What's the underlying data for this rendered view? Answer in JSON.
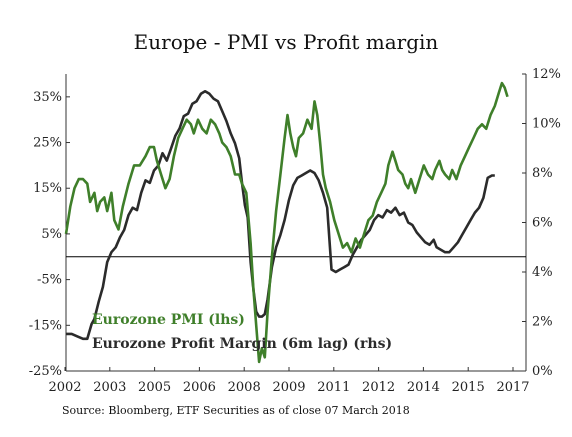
{
  "chart_data": {
    "type": "line",
    "title": "Europe - PMI vs Profit margin",
    "source": "Source: Bloomberg, ETF Securities as of close 07 March 2018",
    "grid": false,
    "legend_position": "bottom-left, inside plot",
    "x_ticks": [
      "2002",
      "2003",
      "2005",
      "2006",
      "2008",
      "2009",
      "2011",
      "2012",
      "2014",
      "2015",
      "2017"
    ],
    "x_range": [
      2002.0,
      2018.2
    ],
    "y_left": {
      "range": [
        -25,
        40
      ],
      "ticks": [
        35,
        25,
        15,
        5,
        -5,
        -15,
        -25
      ],
      "tick_labels": [
        "35%",
        "25%",
        "15%",
        "5%",
        "-5%",
        "-15%",
        "-25%"
      ]
    },
    "y_right": {
      "range": [
        0,
        12
      ],
      "ticks": [
        0,
        2,
        4,
        6,
        8,
        10,
        12
      ],
      "tick_labels": [
        "0%",
        "2%",
        "4%",
        "6%",
        "8%",
        "10%",
        "12%"
      ]
    },
    "zero_line": 0,
    "series": [
      {
        "name": "Eurozone PMI (lhs)",
        "axis": "left",
        "color": "#3f7f2a",
        "points": [
          [
            2002.0,
            5
          ],
          [
            2002.15,
            11
          ],
          [
            2002.3,
            15
          ],
          [
            2002.45,
            17
          ],
          [
            2002.6,
            17
          ],
          [
            2002.75,
            16
          ],
          [
            2002.85,
            12
          ],
          [
            2003.0,
            14
          ],
          [
            2003.1,
            10
          ],
          [
            2003.2,
            12
          ],
          [
            2003.35,
            13
          ],
          [
            2003.45,
            10
          ],
          [
            2003.6,
            14
          ],
          [
            2003.7,
            8
          ],
          [
            2003.85,
            6
          ],
          [
            2004.0,
            11
          ],
          [
            2004.2,
            16
          ],
          [
            2004.4,
            20
          ],
          [
            2004.6,
            20
          ],
          [
            2004.8,
            22
          ],
          [
            2004.95,
            24
          ],
          [
            2005.1,
            24
          ],
          [
            2005.2,
            21
          ],
          [
            2005.35,
            18
          ],
          [
            2005.5,
            15
          ],
          [
            2005.65,
            17
          ],
          [
            2005.8,
            22
          ],
          [
            2005.95,
            26
          ],
          [
            2006.1,
            28
          ],
          [
            2006.25,
            30
          ],
          [
            2006.4,
            29
          ],
          [
            2006.5,
            27
          ],
          [
            2006.65,
            30
          ],
          [
            2006.8,
            28
          ],
          [
            2006.95,
            27
          ],
          [
            2007.1,
            30
          ],
          [
            2007.25,
            29
          ],
          [
            2007.4,
            27
          ],
          [
            2007.5,
            25
          ],
          [
            2007.65,
            24
          ],
          [
            2007.8,
            22
          ],
          [
            2007.95,
            18
          ],
          [
            2008.1,
            18
          ],
          [
            2008.2,
            16
          ],
          [
            2008.35,
            14
          ],
          [
            2008.5,
            3
          ],
          [
            2008.6,
            -7
          ],
          [
            2008.7,
            -15
          ],
          [
            2008.8,
            -23
          ],
          [
            2008.9,
            -20
          ],
          [
            2009.0,
            -22
          ],
          [
            2009.1,
            -12
          ],
          [
            2009.25,
            0
          ],
          [
            2009.4,
            10
          ],
          [
            2009.55,
            18
          ],
          [
            2009.7,
            26
          ],
          [
            2009.8,
            31
          ],
          [
            2009.9,
            27
          ],
          [
            2010.0,
            24
          ],
          [
            2010.1,
            22
          ],
          [
            2010.2,
            26
          ],
          [
            2010.35,
            27
          ],
          [
            2010.5,
            30
          ],
          [
            2010.65,
            28
          ],
          [
            2010.75,
            34
          ],
          [
            2010.85,
            31
          ],
          [
            2010.95,
            25
          ],
          [
            2011.05,
            18
          ],
          [
            2011.15,
            15
          ],
          [
            2011.3,
            12
          ],
          [
            2011.45,
            8
          ],
          [
            2011.6,
            5
          ],
          [
            2011.75,
            2
          ],
          [
            2011.9,
            3
          ],
          [
            2012.05,
            1
          ],
          [
            2012.2,
            4
          ],
          [
            2012.35,
            2
          ],
          [
            2012.5,
            5
          ],
          [
            2012.65,
            8
          ],
          [
            2012.8,
            9
          ],
          [
            2012.95,
            12
          ],
          [
            2013.1,
            14
          ],
          [
            2013.25,
            16
          ],
          [
            2013.35,
            20
          ],
          [
            2013.5,
            23
          ],
          [
            2013.6,
            21
          ],
          [
            2013.7,
            19
          ],
          [
            2013.85,
            18
          ],
          [
            2013.95,
            16
          ],
          [
            2014.05,
            15
          ],
          [
            2014.15,
            17
          ],
          [
            2014.3,
            14
          ],
          [
            2014.45,
            17
          ],
          [
            2014.6,
            20
          ],
          [
            2014.75,
            18
          ],
          [
            2014.9,
            17
          ],
          [
            2015.0,
            19
          ],
          [
            2015.15,
            21
          ],
          [
            2015.25,
            19
          ],
          [
            2015.35,
            18
          ],
          [
            2015.5,
            17
          ],
          [
            2015.6,
            19
          ],
          [
            2015.75,
            17
          ],
          [
            2015.9,
            20
          ],
          [
            2016.05,
            22
          ],
          [
            2016.2,
            24
          ],
          [
            2016.35,
            26
          ],
          [
            2016.5,
            28
          ],
          [
            2016.65,
            29
          ],
          [
            2016.8,
            28
          ],
          [
            2016.95,
            31
          ],
          [
            2017.1,
            33
          ],
          [
            2017.25,
            36
          ],
          [
            2017.35,
            38
          ],
          [
            2017.45,
            37
          ],
          [
            2017.55,
            35
          ]
        ]
      },
      {
        "name": "Eurozone Profit Margin (6m lag) (rhs)",
        "axis": "right",
        "color": "#2b2b2b",
        "points": [
          [
            2002.0,
            1.5
          ],
          [
            2002.2,
            1.5
          ],
          [
            2002.4,
            1.4
          ],
          [
            2002.6,
            1.3
          ],
          [
            2002.75,
            1.3
          ],
          [
            2002.9,
            1.9
          ],
          [
            2003.0,
            2.1
          ],
          [
            2003.15,
            2.8
          ],
          [
            2003.3,
            3.4
          ],
          [
            2003.45,
            4.4
          ],
          [
            2003.6,
            4.8
          ],
          [
            2003.75,
            5.0
          ],
          [
            2003.9,
            5.4
          ],
          [
            2004.05,
            5.7
          ],
          [
            2004.2,
            6.3
          ],
          [
            2004.35,
            6.6
          ],
          [
            2004.5,
            6.5
          ],
          [
            2004.65,
            7.2
          ],
          [
            2004.8,
            7.7
          ],
          [
            2004.95,
            7.6
          ],
          [
            2005.1,
            8.1
          ],
          [
            2005.25,
            8.3
          ],
          [
            2005.4,
            8.8
          ],
          [
            2005.55,
            8.5
          ],
          [
            2005.7,
            9.0
          ],
          [
            2005.85,
            9.5
          ],
          [
            2006.0,
            9.8
          ],
          [
            2006.15,
            10.3
          ],
          [
            2006.3,
            10.4
          ],
          [
            2006.45,
            10.8
          ],
          [
            2006.6,
            10.9
          ],
          [
            2006.75,
            11.2
          ],
          [
            2006.9,
            11.3
          ],
          [
            2007.05,
            11.2
          ],
          [
            2007.2,
            11.0
          ],
          [
            2007.35,
            10.9
          ],
          [
            2007.5,
            10.5
          ],
          [
            2007.65,
            10.1
          ],
          [
            2007.8,
            9.6
          ],
          [
            2007.95,
            9.2
          ],
          [
            2008.1,
            8.6
          ],
          [
            2008.2,
            7.6
          ],
          [
            2008.3,
            6.7
          ],
          [
            2008.4,
            6.2
          ],
          [
            2008.5,
            4.4
          ],
          [
            2008.6,
            3.3
          ],
          [
            2008.7,
            2.4
          ],
          [
            2008.8,
            2.2
          ],
          [
            2008.9,
            2.2
          ],
          [
            2009.0,
            2.3
          ],
          [
            2009.1,
            2.9
          ],
          [
            2009.25,
            4.2
          ],
          [
            2009.4,
            5.0
          ],
          [
            2009.55,
            5.5
          ],
          [
            2009.7,
            6.1
          ],
          [
            2009.85,
            6.9
          ],
          [
            2010.0,
            7.5
          ],
          [
            2010.15,
            7.8
          ],
          [
            2010.3,
            7.9
          ],
          [
            2010.45,
            8.0
          ],
          [
            2010.6,
            8.1
          ],
          [
            2010.75,
            8.0
          ],
          [
            2010.9,
            7.7
          ],
          [
            2011.05,
            7.2
          ],
          [
            2011.2,
            6.6
          ],
          [
            2011.35,
            4.1
          ],
          [
            2011.5,
            4.0
          ],
          [
            2011.65,
            4.1
          ],
          [
            2011.8,
            4.2
          ],
          [
            2011.95,
            4.3
          ],
          [
            2012.1,
            4.7
          ],
          [
            2012.25,
            5.0
          ],
          [
            2012.4,
            5.3
          ],
          [
            2012.55,
            5.5
          ],
          [
            2012.7,
            5.7
          ],
          [
            2012.85,
            6.1
          ],
          [
            2013.0,
            6.3
          ],
          [
            2013.15,
            6.2
          ],
          [
            2013.3,
            6.5
          ],
          [
            2013.45,
            6.4
          ],
          [
            2013.6,
            6.6
          ],
          [
            2013.75,
            6.3
          ],
          [
            2013.9,
            6.4
          ],
          [
            2014.05,
            6.0
          ],
          [
            2014.2,
            5.9
          ],
          [
            2014.35,
            5.6
          ],
          [
            2014.5,
            5.4
          ],
          [
            2014.65,
            5.2
          ],
          [
            2014.8,
            5.1
          ],
          [
            2014.95,
            5.3
          ],
          [
            2015.05,
            5.0
          ],
          [
            2015.2,
            4.9
          ],
          [
            2015.35,
            4.8
          ],
          [
            2015.5,
            4.8
          ],
          [
            2015.65,
            5.0
          ],
          [
            2015.8,
            5.2
          ],
          [
            2015.95,
            5.5
          ],
          [
            2016.1,
            5.8
          ],
          [
            2016.25,
            6.1
          ],
          [
            2016.4,
            6.4
          ],
          [
            2016.55,
            6.6
          ],
          [
            2016.7,
            7.0
          ],
          [
            2016.85,
            7.8
          ],
          [
            2017.0,
            7.9
          ],
          [
            2017.1,
            7.9
          ]
        ]
      }
    ]
  }
}
